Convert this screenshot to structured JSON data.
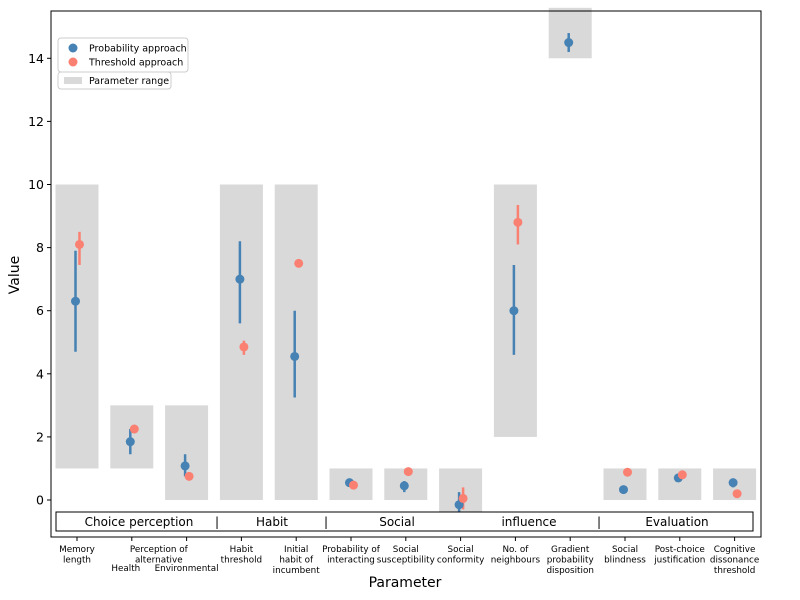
{
  "chart_data": {
    "type": "scatter",
    "xlabel": "Parameter",
    "ylabel": "Value",
    "ylim": [
      -1.0,
      15.6
    ],
    "yticks": [
      0,
      2,
      4,
      6,
      8,
      10,
      12,
      14
    ],
    "categories": [
      [
        "Memory",
        "length"
      ],
      [
        "Perception of",
        "alternative"
      ],
      [],
      [
        "Habit",
        "threshold"
      ],
      [
        "Initial",
        "habit of",
        "incumbent"
      ],
      [
        "Probability of",
        "interacting"
      ],
      [
        "Social",
        "susceptibility"
      ],
      [
        "Social",
        "conformity"
      ],
      [
        "No. of",
        "neighbours"
      ],
      [
        "Gradient",
        "probability",
        "disposition"
      ],
      [
        "Social",
        "blindness"
      ],
      [
        "Post-choice",
        "justification"
      ],
      [
        "Cognitive",
        "dissonance",
        "threshold"
      ]
    ],
    "extra_tick_labels": [
      "Health",
      "Environmental"
    ],
    "parameter_ranges": [
      [
        1,
        10
      ],
      [
        1,
        3
      ],
      [
        0,
        3
      ],
      [
        0,
        10
      ],
      [
        0,
        10
      ],
      [
        0,
        1
      ],
      [
        0,
        1
      ],
      [
        -1,
        1
      ],
      [
        2,
        10
      ],
      [
        14,
        15.6
      ],
      [
        0,
        1
      ],
      [
        0,
        1
      ],
      [
        0,
        1
      ]
    ],
    "series": [
      {
        "name": "Probability approach",
        "color": "#4682b4",
        "values": [
          6.3,
          1.85,
          1.08,
          7.0,
          4.55,
          0.55,
          0.45,
          -0.15,
          6.0,
          14.5,
          0.33,
          0.7,
          0.55
        ],
        "err_low": [
          4.7,
          1.45,
          0.75,
          5.6,
          3.25,
          0.48,
          0.25,
          -0.45,
          4.6,
          14.2,
          0.2,
          0.6,
          0.4
        ],
        "err_high": [
          7.9,
          2.25,
          1.45,
          8.2,
          6.0,
          0.65,
          0.6,
          0.25,
          7.45,
          14.8,
          0.45,
          0.8,
          0.68
        ]
      },
      {
        "name": "Threshold approach",
        "color": "#fa8072",
        "values": [
          8.1,
          2.25,
          0.75,
          4.85,
          7.5,
          0.47,
          0.9,
          0.05,
          8.8,
          null,
          0.88,
          0.8,
          0.2
        ],
        "err_low": [
          7.45,
          null,
          null,
          4.6,
          null,
          null,
          null,
          -0.3,
          8.1,
          null,
          null,
          null,
          null
        ],
        "err_high": [
          8.5,
          null,
          null,
          5.05,
          null,
          null,
          null,
          0.4,
          9.35,
          null,
          null,
          null,
          null
        ]
      }
    ],
    "range_label": "Parameter range",
    "range_color": "#d9d9d9",
    "groups": [
      {
        "label": "Choice perception",
        "from": 0,
        "to": 2
      },
      {
        "label": "Habit",
        "from": 3,
        "to": 4
      },
      {
        "label": "Social",
        "from": 5,
        "to": 7
      },
      {
        "label": "influence",
        "from": 8,
        "to": 9
      },
      {
        "label": "Evaluation",
        "from": 10,
        "to": 12
      }
    ],
    "legend_position": "top-left",
    "grid": false
  }
}
